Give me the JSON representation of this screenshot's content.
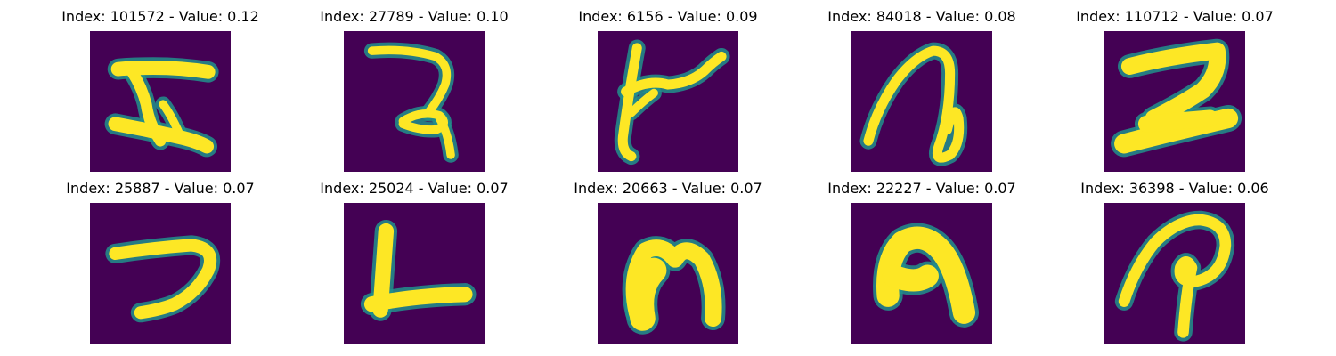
{
  "chart_data": {
    "type": "image_grid",
    "rows": 2,
    "cols": 5,
    "panels": [
      {
        "title": "Index: 101572 - Value: 0.12",
        "index": 101572,
        "value": 0.12,
        "glyph": "glyph-i-shape"
      },
      {
        "title": "Index: 27789 - Value: 0.10",
        "index": 27789,
        "value": 0.1,
        "glyph": "glyph-ra-shape"
      },
      {
        "title": "Index: 6156 - Value: 0.09",
        "index": 6156,
        "value": 0.09,
        "glyph": "glyph-crossed-stem"
      },
      {
        "title": "Index: 84018 - Value: 0.08",
        "index": 84018,
        "value": 0.08,
        "glyph": "glyph-looped-arch"
      },
      {
        "title": "Index: 110712 - Value: 0.07",
        "index": 110712,
        "value": 0.07,
        "glyph": "glyph-z-block"
      },
      {
        "title": "Index: 25887 - Value: 0.07",
        "index": 25887,
        "value": 0.07,
        "glyph": "glyph-seven-hook"
      },
      {
        "title": "Index: 25024 - Value: 0.07",
        "index": 25024,
        "value": 0.07,
        "glyph": "glyph-l-shape"
      },
      {
        "title": "Index: 20663 - Value: 0.07",
        "index": 20663,
        "value": 0.07,
        "glyph": "glyph-arch"
      },
      {
        "title": "Index: 22227 - Value: 0.07",
        "index": 22227,
        "value": 0.07,
        "glyph": "glyph-thick-arch"
      },
      {
        "title": "Index: 36398 - Value: 0.06",
        "index": 36398,
        "value": 0.06,
        "glyph": "glyph-p-curl"
      }
    ],
    "colors": {
      "background": "#440154",
      "edge": "#21918c",
      "ink": "#fde725"
    }
  }
}
